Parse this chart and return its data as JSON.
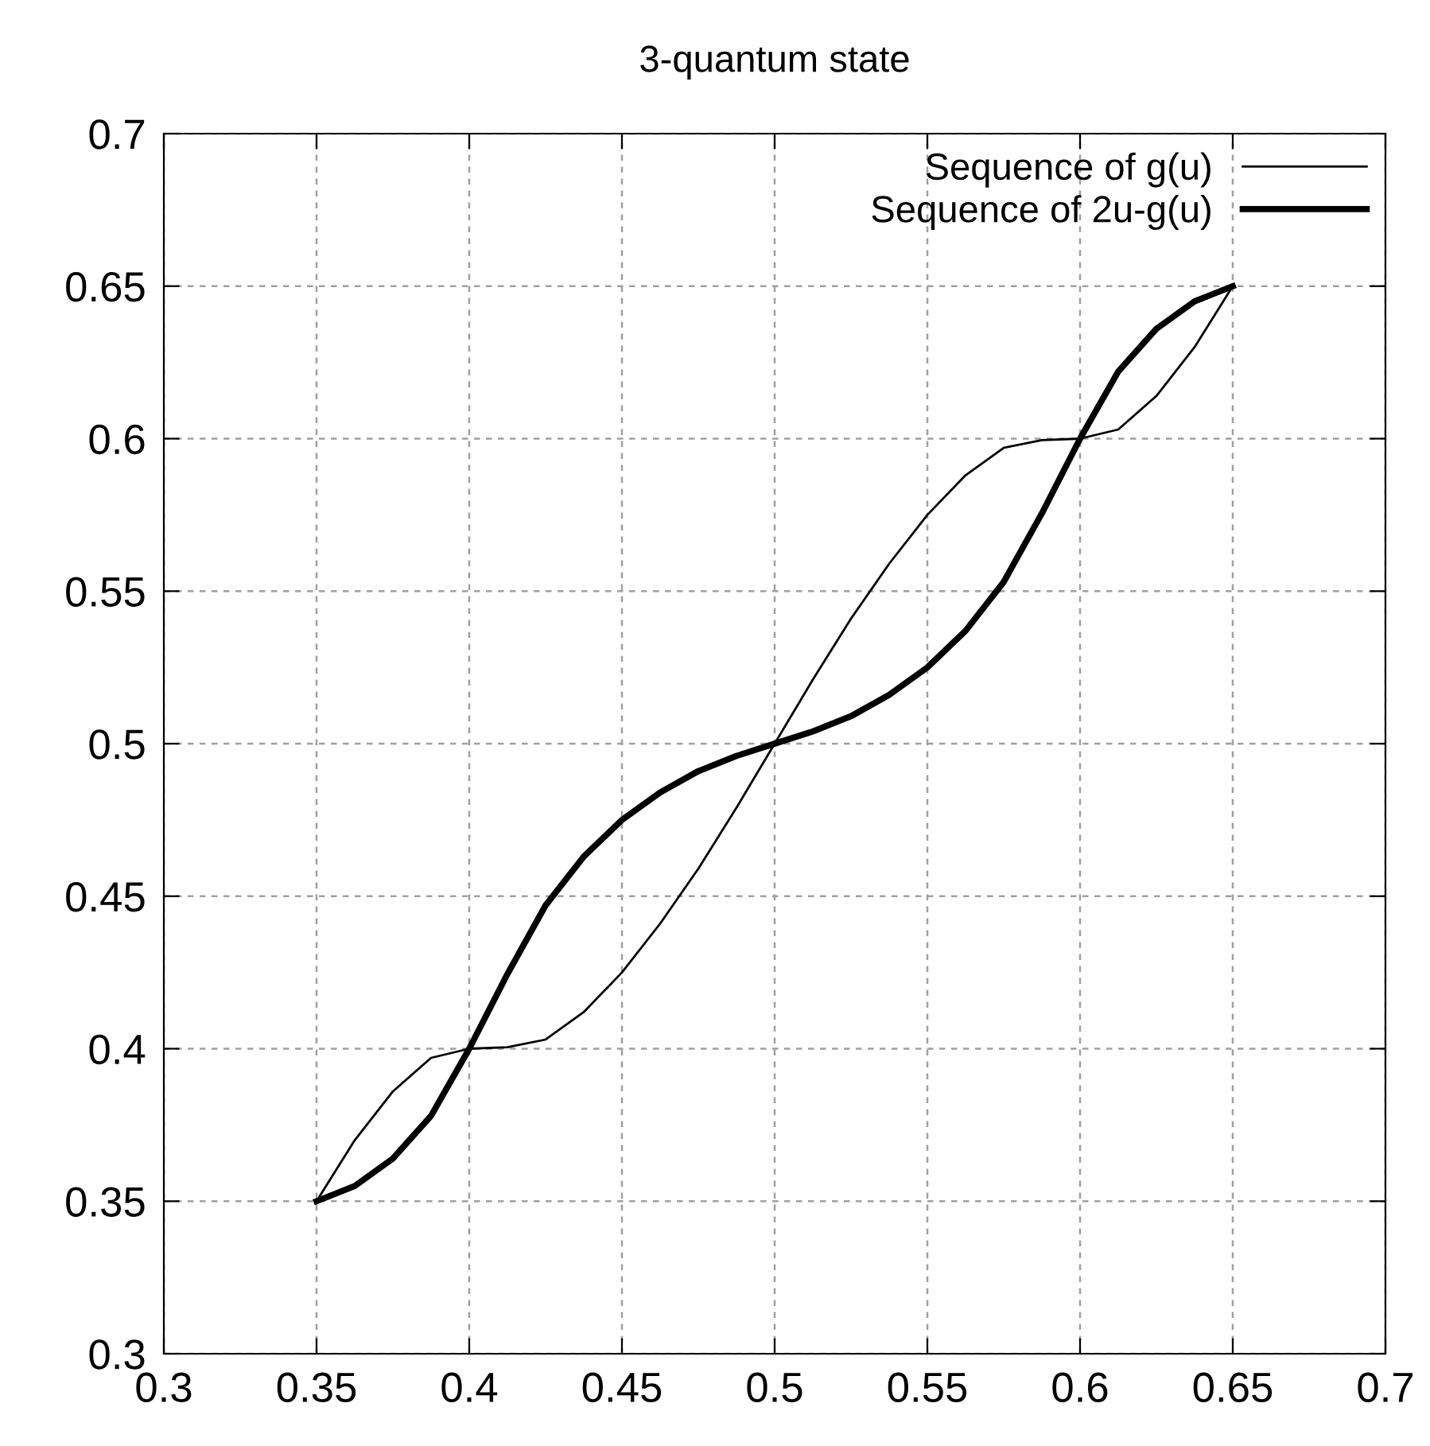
{
  "chart_data": {
    "type": "line",
    "title": "3-quantum state",
    "x": [
      0.35,
      0.3625,
      0.375,
      0.3875,
      0.4,
      0.4125,
      0.425,
      0.4375,
      0.45,
      0.4625,
      0.475,
      0.4875,
      0.5,
      0.5125,
      0.525,
      0.5375,
      0.55,
      0.5625,
      0.575,
      0.5875,
      0.6,
      0.6125,
      0.625,
      0.6375,
      0.65
    ],
    "series": [
      {
        "name": "Sequence of g(u)",
        "color": "#000000",
        "values": [
          0.35,
          0.37,
          0.386,
          0.397,
          0.4,
          0.4005,
          0.403,
          0.412,
          0.425,
          0.441,
          0.459,
          0.479,
          0.5,
          0.521,
          0.541,
          0.559,
          0.575,
          0.588,
          0.597,
          0.5995,
          0.6,
          0.603,
          0.614,
          0.63,
          0.65
        ]
      },
      {
        "name": "Sequence of 2u-g(u)",
        "color": "#000000",
        "values": [
          0.35,
          0.355,
          0.364,
          0.378,
          0.4,
          0.4245,
          0.447,
          0.463,
          0.475,
          0.484,
          0.491,
          0.496,
          0.5,
          0.504,
          0.509,
          0.516,
          0.525,
          0.537,
          0.553,
          0.5755,
          0.6,
          0.622,
          0.636,
          0.645,
          0.65
        ]
      }
    ],
    "xlim": [
      0.3,
      0.7
    ],
    "ylim": [
      0.3,
      0.7
    ],
    "xticks": [
      0.3,
      0.35,
      0.4,
      0.45,
      0.5,
      0.55,
      0.6,
      0.65,
      0.7
    ],
    "yticks": [
      0.3,
      0.35,
      0.4,
      0.45,
      0.5,
      0.55,
      0.6,
      0.65,
      0.7
    ],
    "grid": true,
    "legend": "top right",
    "line_style": "solid",
    "marker": "none"
  }
}
